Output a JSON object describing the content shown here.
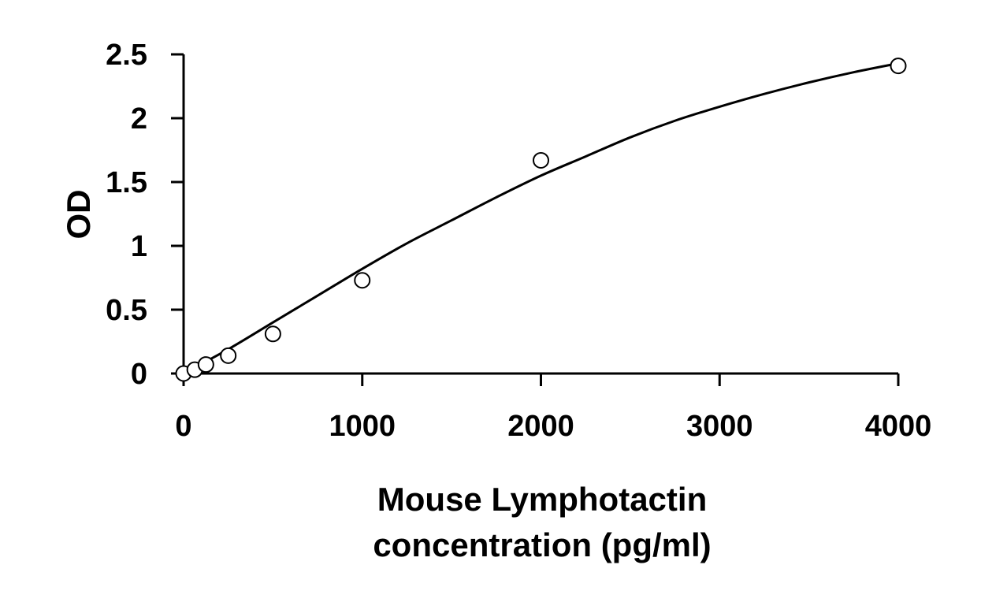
{
  "chart_data": {
    "type": "scatter",
    "title": "",
    "xlabel_lines": [
      "Mouse Lymphotactin",
      "concentration (pg/ml)"
    ],
    "ylabel": "OD",
    "xlim": [
      0,
      4000
    ],
    "ylim": [
      0,
      2.5
    ],
    "xticks": [
      0,
      1000,
      2000,
      3000,
      4000
    ],
    "xtick_labels": [
      "0",
      "1000",
      "2000",
      "3000",
      "4000"
    ],
    "yticks": [
      0,
      0.5,
      1,
      1.5,
      2,
      2.5
    ],
    "ytick_labels": [
      "0",
      "0.5",
      "1",
      "1.5",
      "2",
      "2.5"
    ],
    "grid": false,
    "legend": "none",
    "series": [
      {
        "kind": "points",
        "marker": "open-circle",
        "x": [
          0,
          62.5,
          125,
          250,
          500,
          1000,
          2000,
          4000
        ],
        "y": [
          0.0,
          0.03,
          0.07,
          0.14,
          0.31,
          0.73,
          1.67,
          2.41
        ]
      },
      {
        "kind": "fit-curve",
        "x": [
          0,
          250,
          500,
          750,
          1000,
          1250,
          1500,
          1750,
          2000,
          2250,
          2500,
          2750,
          3000,
          3250,
          3500,
          3750,
          4000
        ],
        "y": [
          0.0,
          0.19,
          0.4,
          0.61,
          0.82,
          1.02,
          1.2,
          1.38,
          1.55,
          1.7,
          1.85,
          1.98,
          2.09,
          2.19,
          2.28,
          2.36,
          2.43
        ]
      }
    ],
    "colors": {
      "axis": "#000000",
      "marker_stroke": "#000000",
      "marker_fill": "#ffffff",
      "curve": "#000000"
    }
  }
}
